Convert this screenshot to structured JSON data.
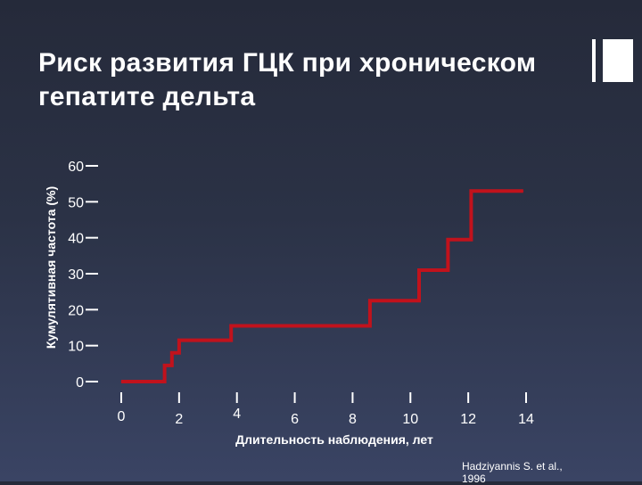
{
  "slide": {
    "title_lines": [
      "Риск развития ГЦК при хроническом",
      "гепатите дельта"
    ],
    "source_lines": [
      "Hadziyannis S. et al.,",
      "1996"
    ]
  },
  "colors": {
    "line": "#c1121c",
    "axis": "#ffffff",
    "text": "#ffffff"
  },
  "chart_data": {
    "type": "line",
    "step": true,
    "title": "Риск развития ГЦК при хроническом гепатите дельта",
    "xlabel": "Длительность наблюдения, лет",
    "ylabel": "Кумулятивная частота (%)",
    "xlim": [
      0,
      14
    ],
    "ylim": [
      0,
      60
    ],
    "x_ticks": [
      0,
      2,
      4,
      6,
      8,
      10,
      12,
      14
    ],
    "y_ticks": [
      0,
      10,
      20,
      30,
      40,
      50,
      60
    ],
    "grid": false,
    "series": [
      {
        "x": [
          0,
          1.5,
          1.5,
          1.75,
          1.75,
          2.0,
          2.0,
          3.8,
          3.8,
          8.6,
          8.6,
          10.3,
          10.3,
          11.3,
          11.3,
          12.1,
          12.1,
          13.9
        ],
        "values": [
          0,
          0,
          4.5,
          4.5,
          8,
          8,
          11.5,
          11.5,
          15.5,
          15.5,
          22.5,
          22.5,
          31,
          31,
          39.5,
          39.5,
          53,
          53
        ]
      }
    ]
  }
}
